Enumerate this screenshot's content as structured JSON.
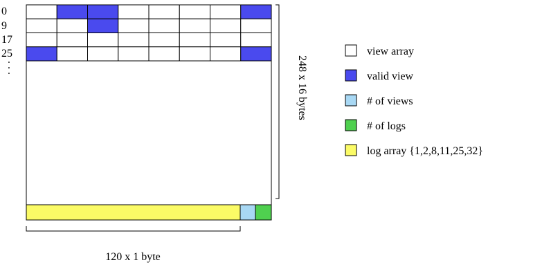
{
  "colors": {
    "view_array": "#ffffff",
    "valid_view": "#4a4aee",
    "num_views": "#a8d8f4",
    "num_logs": "#4fd04f",
    "log_array": "#fbfb66"
  },
  "row_labels": [
    "0",
    "9",
    "17",
    "25",
    ". . ."
  ],
  "grid": {
    "columns": 8,
    "rows": 4,
    "valid_cells": [
      [
        0,
        1
      ],
      [
        0,
        2
      ],
      [
        0,
        7
      ],
      [
        1,
        2
      ],
      [
        3,
        0
      ],
      [
        3,
        7
      ]
    ]
  },
  "dimensions": {
    "vertical": "248 x 16 bytes",
    "horizontal": "120 x 1 byte"
  },
  "legend": [
    {
      "label": "view array",
      "color_key": "view_array"
    },
    {
      "label": "valid view",
      "color_key": "valid_view"
    },
    {
      "label": "# of views",
      "color_key": "num_views"
    },
    {
      "label": "# of logs",
      "color_key": "num_logs"
    },
    {
      "label": "log array {1,2,8,11,25,32}",
      "color_key": "log_array"
    }
  ]
}
